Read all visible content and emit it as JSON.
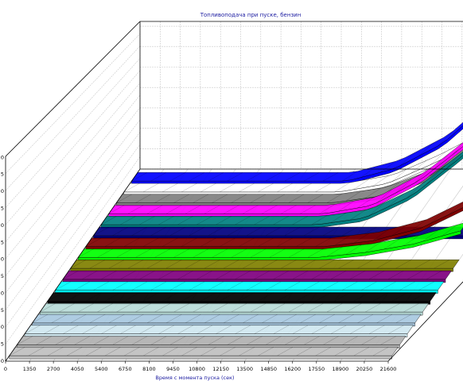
{
  "chart_data": {
    "type": "area",
    "title": "Топливоподача при пуске, бензин",
    "xlabel": "Время с момента пуска (сек)",
    "ylabel": "",
    "x_ticks": [
      "0",
      "1350",
      "2700",
      "4050",
      "5400",
      "6750",
      "8100",
      "9450",
      "10800",
      "12150",
      "13500",
      "14850",
      "16200",
      "17550",
      "18900",
      "20250",
      "21600"
    ],
    "xlim": [
      0,
      21600
    ],
    "y_ticks_partial": [
      "0",
      "5",
      "0",
      "5",
      "0",
      "5",
      "0",
      "5",
      "0",
      "5",
      "0",
      "5",
      "0"
    ],
    "grid": true,
    "series": [
      {
        "color": "#c0c0c0",
        "x": [
          0,
          21600
        ],
        "values": [
          0,
          0
        ]
      },
      {
        "color": "#b0b0b0",
        "x": [
          0,
          21600
        ],
        "values": [
          0,
          0
        ]
      },
      {
        "color": "#d0e8f0",
        "x": [
          0,
          21600
        ],
        "values": [
          0,
          0
        ]
      },
      {
        "color": "#a8c8e0",
        "x": [
          0,
          21600
        ],
        "values": [
          0,
          0
        ]
      },
      {
        "color": "#b8dcd8",
        "x": [
          0,
          21600
        ],
        "values": [
          0,
          0
        ]
      },
      {
        "color": "#000000",
        "x": [
          0,
          21600
        ],
        "values": [
          0,
          0
        ]
      },
      {
        "color": "#00ffff",
        "x": [
          0,
          21600
        ],
        "values": [
          0,
          0
        ]
      },
      {
        "color": "#800080",
        "x": [
          0,
          21600
        ],
        "values": [
          0,
          0
        ]
      },
      {
        "color": "#808000",
        "x": [
          0,
          21600
        ],
        "values": [
          0,
          0
        ]
      },
      {
        "color": "#00ff00",
        "x": [
          0,
          13500,
          16200,
          18900,
          21600
        ],
        "values": [
          0,
          0,
          0.6,
          1.6,
          3.2
        ]
      },
      {
        "color": "#800000",
        "x": [
          0,
          13500,
          16200,
          18900,
          21600
        ],
        "values": [
          0,
          0,
          0.7,
          2.2,
          5.0
        ]
      },
      {
        "color": "#000080",
        "x": [
          0,
          21600
        ],
        "values": [
          0,
          0
        ]
      },
      {
        "color": "#008080",
        "x": [
          0,
          12150,
          14850,
          17550,
          20250,
          21600
        ],
        "values": [
          0,
          0,
          0.8,
          3.5,
          8.0,
          10.5
        ]
      },
      {
        "color": "#ff00ff",
        "x": [
          0,
          12150,
          14850,
          17550,
          20250,
          21600
        ],
        "values": [
          0,
          0,
          1.0,
          4.0,
          8.5,
          11.0
        ]
      },
      {
        "color": "#808080",
        "x": [
          0,
          12150,
          14850,
          17550,
          20250,
          21600
        ],
        "values": [
          0,
          0,
          0.8,
          3.0,
          7.0,
          9.5
        ]
      },
      {
        "color": "#ffffff",
        "x": [
          0,
          12150,
          14850,
          17550,
          20250,
          21600
        ],
        "values": [
          0,
          0,
          1.0,
          3.5,
          6.5,
          8.5
        ]
      },
      {
        "color": "#0000ff",
        "x": [
          0,
          12150,
          14850,
          17550,
          20250,
          21600
        ],
        "values": [
          0,
          0,
          1.5,
          4.5,
          9.5,
          14.5
        ]
      }
    ]
  }
}
